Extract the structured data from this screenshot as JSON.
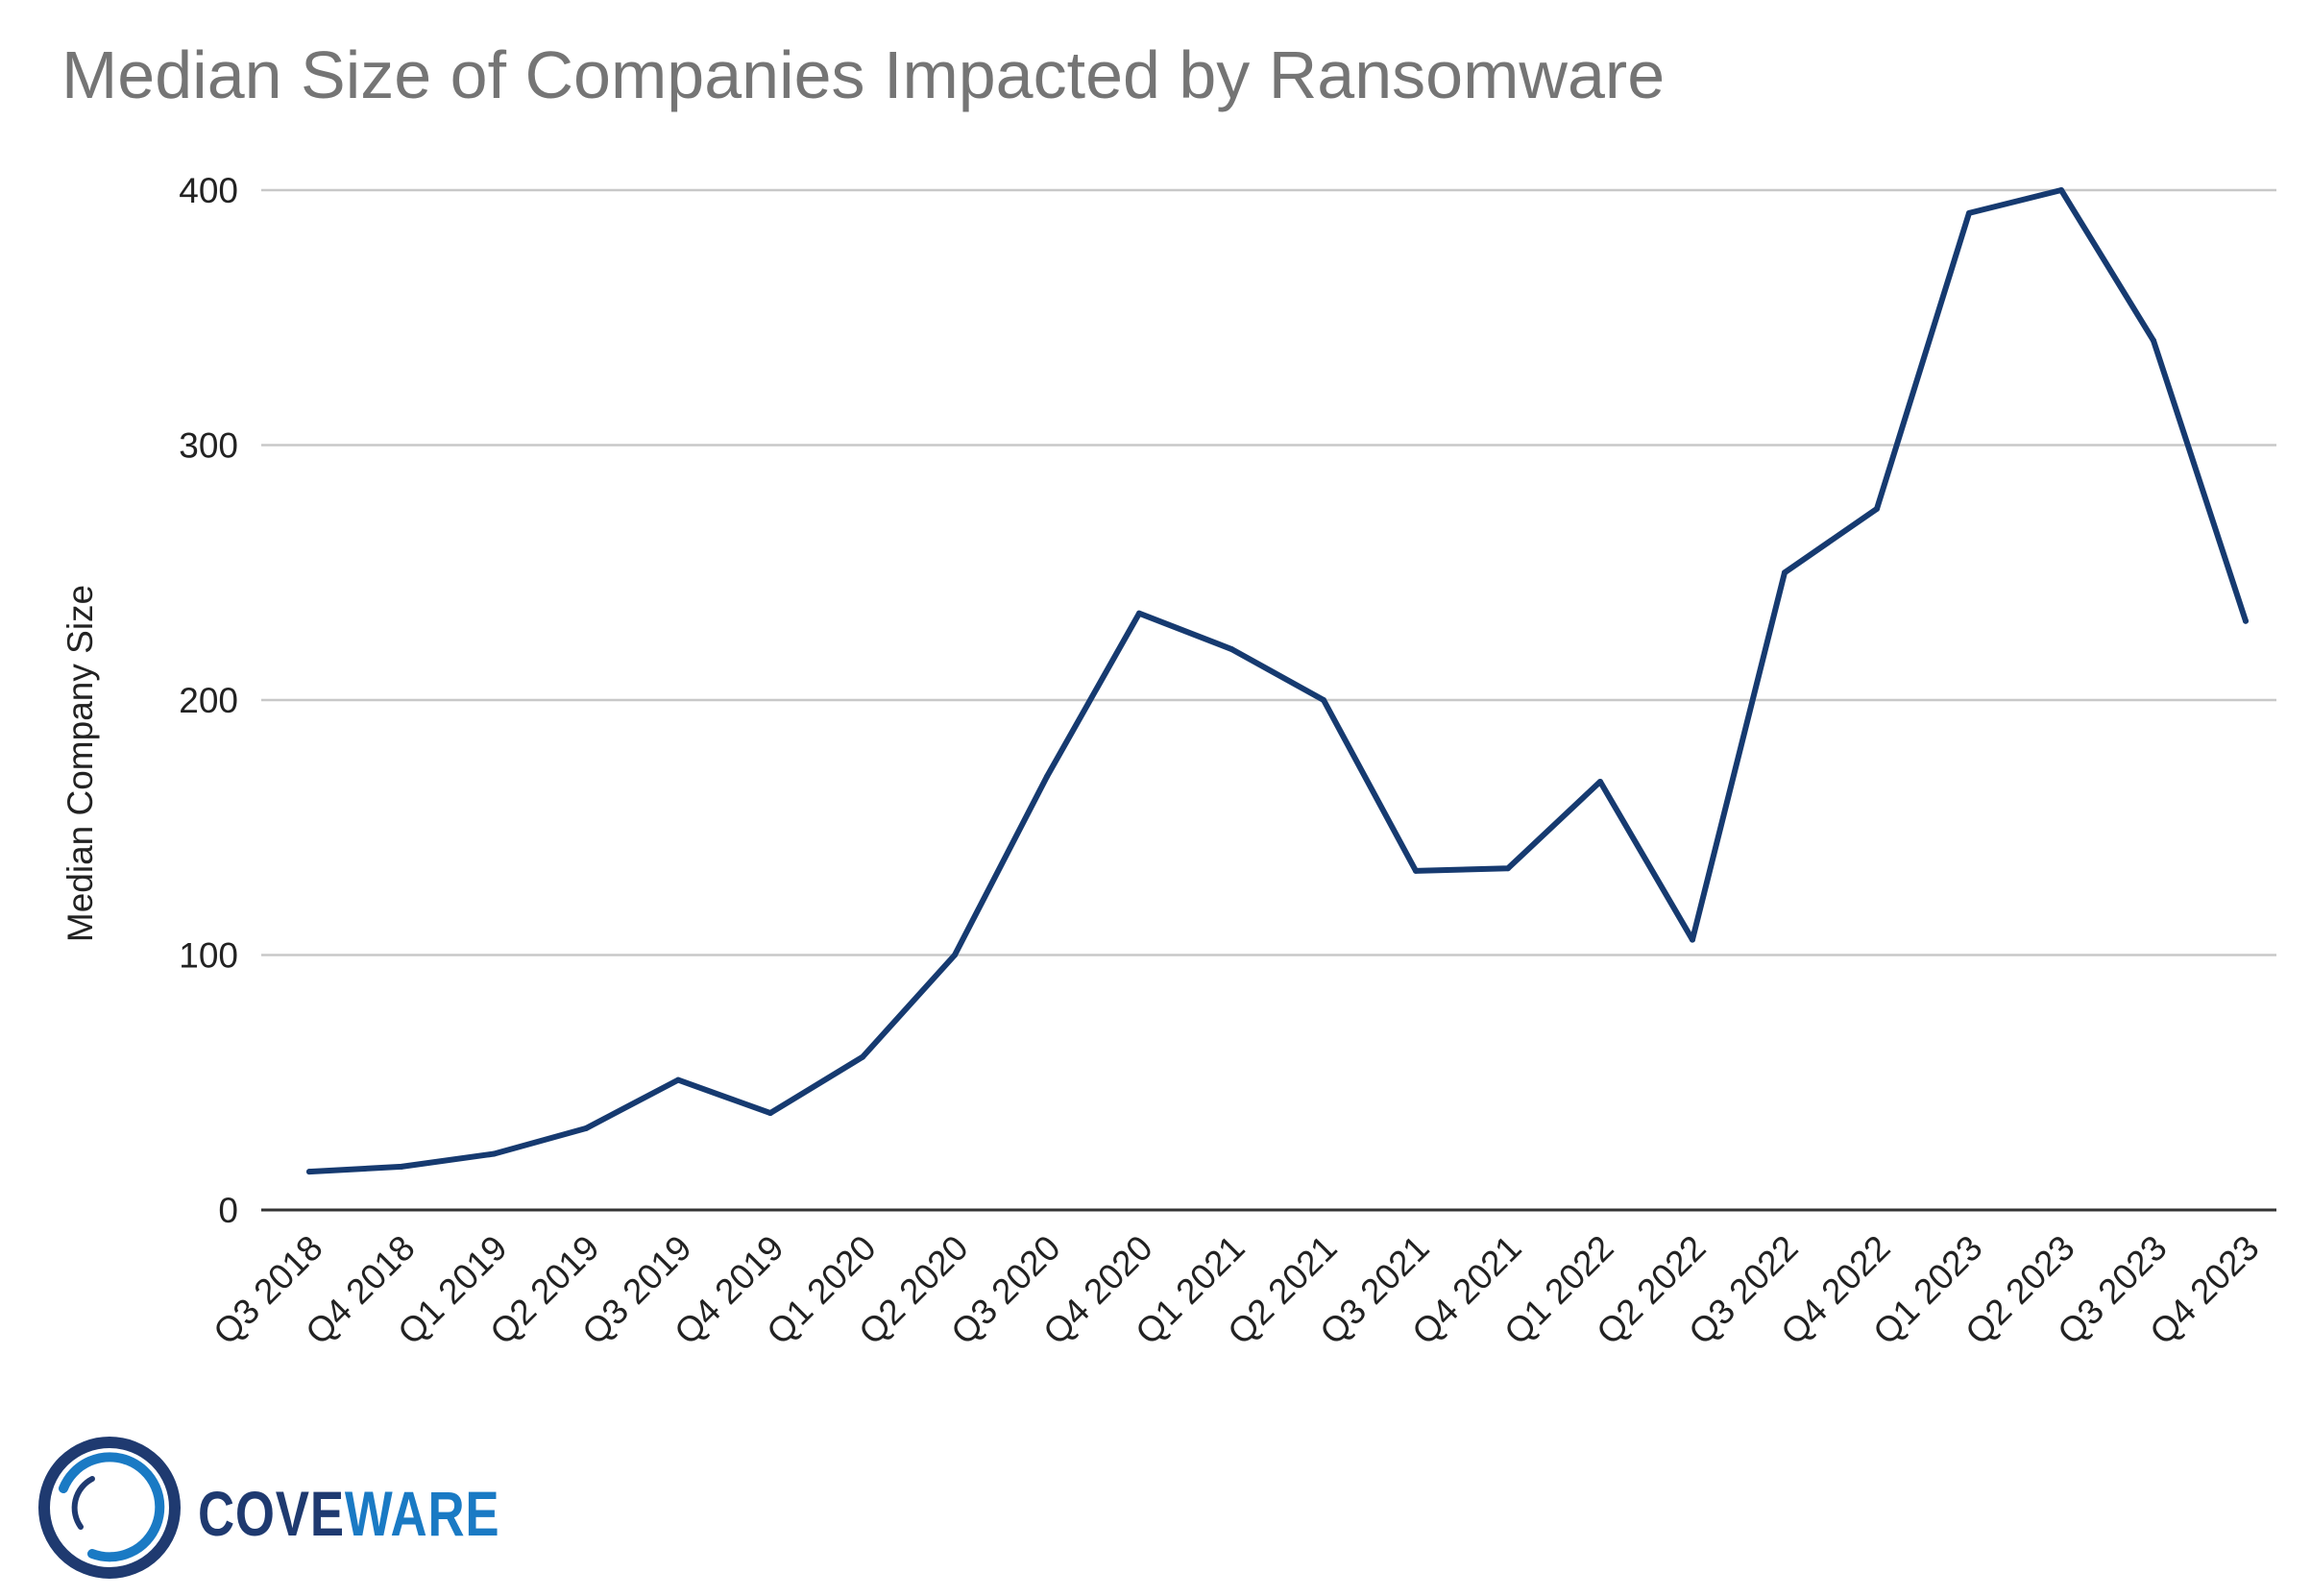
{
  "chart_data": {
    "type": "line",
    "title": "Median Size of Companies Impacted by Ransomware",
    "ylabel": "Median Company Size",
    "xlabel": "",
    "ylim": [
      0,
      400
    ],
    "yticks": [
      0,
      100,
      200,
      300,
      400
    ],
    "grid": true,
    "line_color": "#163a70",
    "categories": [
      "Q3 2018",
      "Q4 2018",
      "Q1 2019",
      "Q2 2019",
      "Q3 2019",
      "Q4 2019",
      "Q1 2020",
      "Q2 2020",
      "Q3 2020",
      "Q4 2020",
      "Q1 2021",
      "Q2 2021",
      "Q3 2021",
      "Q4 2021",
      "Q1 2022",
      "Q2 2022",
      "Q3 2022",
      "Q4 2022",
      "Q1 2023",
      "Q2 2023",
      "Q3 2023",
      "Q4 2023"
    ],
    "series": [
      {
        "values": [
          15,
          17,
          22,
          32,
          51,
          38,
          60,
          100,
          170,
          234,
          220,
          200,
          133,
          134,
          168,
          106,
          250,
          275,
          391,
          400,
          341,
          231
        ]
      }
    ]
  },
  "logo": {
    "text_part1": "COVE",
    "text_part2": "WARE",
    "color_dark": "#1f3a70",
    "color_light": "#1a7ac4"
  }
}
